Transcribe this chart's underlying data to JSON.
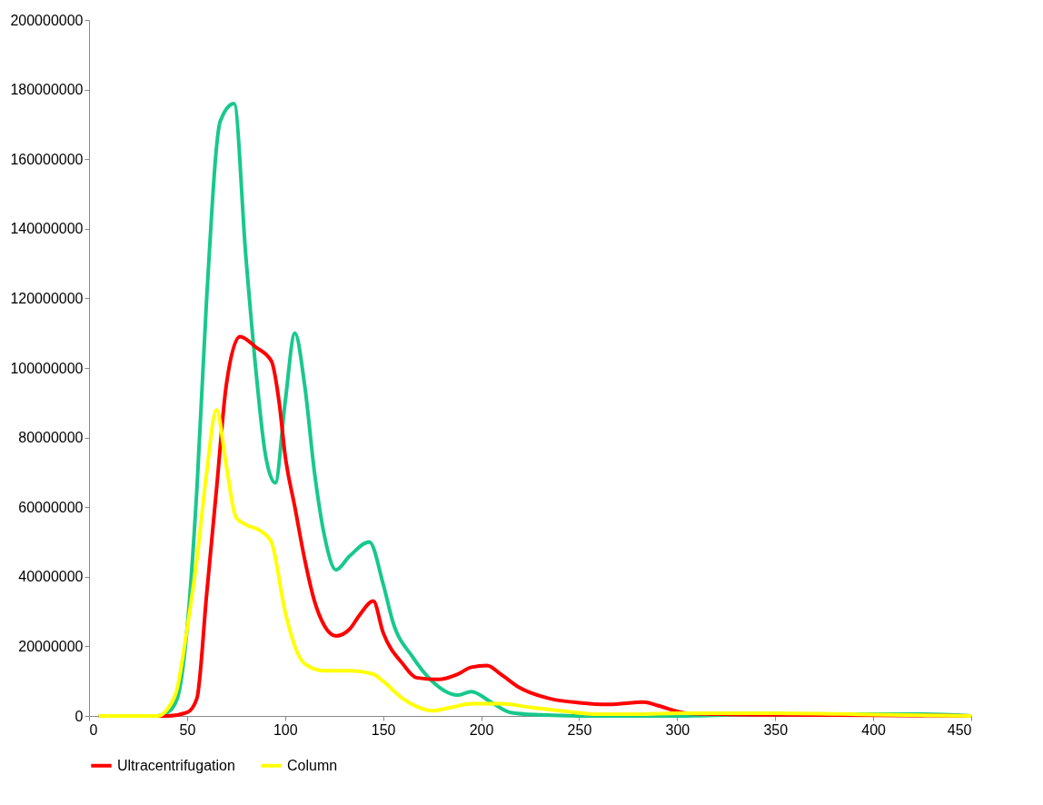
{
  "chart_data": {
    "type": "line",
    "xlim": [
      0,
      450
    ],
    "xticks": [
      0,
      50,
      100,
      150,
      200,
      250,
      300,
      350,
      400,
      450
    ],
    "ylim": [
      0,
      200000000
    ],
    "yticks": [
      0,
      20000000,
      40000000,
      60000000,
      80000000,
      100000000,
      120000000,
      140000000,
      160000000,
      180000000,
      200000000
    ],
    "legend": "bottom",
    "grid": false,
    "marker": "none",
    "line_style": "solid",
    "series": [
      {
        "color": "#18c88c",
        "x": [
          5,
          35,
          40,
          45,
          50,
          55,
          60,
          67,
          74,
          80,
          85,
          90,
          95,
          100,
          105,
          110,
          115,
          120,
          126,
          133,
          143,
          150,
          155,
          165,
          175,
          188,
          195,
          205,
          215,
          230,
          250,
          300,
          350,
          425,
          450
        ],
        "values": [
          0,
          0,
          1000000,
          5000000,
          25000000,
          65000000,
          120000000,
          171000000,
          176000000,
          132000000,
          100000000,
          75000000,
          67000000,
          90000000,
          110000000,
          95000000,
          70000000,
          52000000,
          42000000,
          46000000,
          50000000,
          38000000,
          27000000,
          17000000,
          10000000,
          6000000,
          7000000,
          4000000,
          1000000,
          300000,
          0,
          0,
          500000,
          500000,
          0
        ]
      },
      {
        "name": "Ultracentrifugation",
        "color": "#ff0000",
        "x": [
          5,
          40,
          50,
          55,
          60,
          65,
          70,
          77,
          85,
          93,
          97,
          100,
          105,
          110,
          115,
          120,
          126,
          133,
          138,
          145,
          150,
          160,
          167,
          178,
          188,
          195,
          203,
          210,
          220,
          235,
          250,
          265,
          283,
          290,
          305,
          320,
          350,
          400,
          450
        ],
        "values": [
          0,
          0,
          1000000,
          5000000,
          35000000,
          65000000,
          95000000,
          109000000,
          106000000,
          102000000,
          90000000,
          75000000,
          60000000,
          45000000,
          33000000,
          26000000,
          23000000,
          25000000,
          29000000,
          33000000,
          24000000,
          15000000,
          11000000,
          10500000,
          12000000,
          14000000,
          14500000,
          12000000,
          8000000,
          5000000,
          3800000,
          3300000,
          4000000,
          3000000,
          800000,
          500000,
          300000,
          200000,
          0
        ]
      },
      {
        "name": "Column",
        "color": "#ffff00",
        "x": [
          5,
          35,
          40,
          45,
          50,
          55,
          60,
          65,
          70,
          75,
          80,
          88,
          93,
          100,
          105,
          110,
          120,
          133,
          145,
          150,
          160,
          168,
          175,
          185,
          195,
          210,
          225,
          240,
          260,
          280,
          300,
          350,
          400,
          450
        ],
        "values": [
          0,
          0,
          2000000,
          8000000,
          25000000,
          45000000,
          70000000,
          88000000,
          72000000,
          57000000,
          55000000,
          53000000,
          50000000,
          30000000,
          20000000,
          15000000,
          13000000,
          13000000,
          12000000,
          10000000,
          5000000,
          2500000,
          1500000,
          2500000,
          3500000,
          3500000,
          2500000,
          1500000,
          500000,
          500000,
          800000,
          800000,
          400000,
          0
        ]
      }
    ]
  }
}
